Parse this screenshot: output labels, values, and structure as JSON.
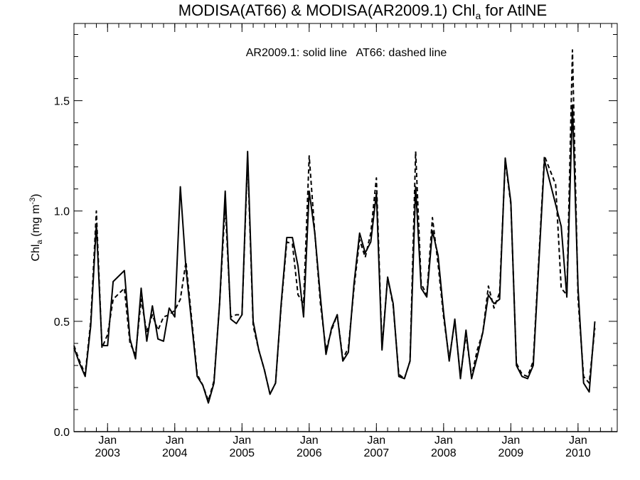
{
  "chart_data": {
    "type": "line",
    "title": {
      "prefix": "MODISA(AT66) & MODISA(AR2009.1)  Chl",
      "subscript": "a",
      "suffix": " for AtlNE"
    },
    "annotation": "AR2009.1: solid line   AT66: dashed line",
    "ylabel": {
      "base": "Chl",
      "subscript": "a",
      "units": " (mg m",
      "superscript": "-3",
      "close": ")"
    },
    "ylim": [
      0.0,
      1.85
    ],
    "yticks": [
      {
        "value": 0.0,
        "label": "0.0"
      },
      {
        "value": 0.5,
        "label": "0.5"
      },
      {
        "value": 1.0,
        "label": "1.0"
      },
      {
        "value": 1.5,
        "label": "1.5"
      }
    ],
    "xlim": [
      "2002-07",
      "2010-08"
    ],
    "xticks": [
      {
        "date": "2003-01",
        "month": "Jan",
        "year": "2003"
      },
      {
        "date": "2004-01",
        "month": "Jan",
        "year": "2004"
      },
      {
        "date": "2005-01",
        "month": "Jan",
        "year": "2005"
      },
      {
        "date": "2006-01",
        "month": "Jan",
        "year": "2006"
      },
      {
        "date": "2007-01",
        "month": "Jan",
        "year": "2007"
      },
      {
        "date": "2008-01",
        "month": "Jan",
        "year": "2008"
      },
      {
        "date": "2009-01",
        "month": "Jan",
        "year": "2009"
      },
      {
        "date": "2010-01",
        "month": "Jan",
        "year": "2010"
      }
    ],
    "grid": false,
    "series": [
      {
        "name": "AR2009.1",
        "style": "solid",
        "color": "#000000",
        "points": [
          [
            "2002-07",
            0.38
          ],
          [
            "2002-08",
            0.31
          ],
          [
            "2002-09",
            0.25
          ],
          [
            "2002-10",
            0.48
          ],
          [
            "2002-11",
            0.94
          ],
          [
            "2002-12",
            0.39
          ],
          [
            "2003-01",
            0.39
          ],
          [
            "2003-02",
            0.68
          ],
          [
            "2003-04",
            0.73
          ],
          [
            "2003-05",
            0.42
          ],
          [
            "2003-06",
            0.33
          ],
          [
            "2003-07",
            0.65
          ],
          [
            "2003-08",
            0.41
          ],
          [
            "2003-09",
            0.57
          ],
          [
            "2003-10",
            0.42
          ],
          [
            "2003-11",
            0.41
          ],
          [
            "2003-12",
            0.56
          ],
          [
            "2004-01",
            0.52
          ],
          [
            "2004-02",
            1.11
          ],
          [
            "2004-03",
            0.74
          ],
          [
            "2004-05",
            0.25
          ],
          [
            "2004-06",
            0.21
          ],
          [
            "2004-07",
            0.13
          ],
          [
            "2004-08",
            0.22
          ],
          [
            "2004-09",
            0.58
          ],
          [
            "2004-10",
            1.09
          ],
          [
            "2004-11",
            0.51
          ],
          [
            "2004-12",
            0.49
          ],
          [
            "2005-01",
            0.53
          ],
          [
            "2005-02",
            1.27
          ],
          [
            "2005-03",
            0.5
          ],
          [
            "2005-04",
            0.37
          ],
          [
            "2005-05",
            0.28
          ],
          [
            "2005-06",
            0.17
          ],
          [
            "2005-07",
            0.22
          ],
          [
            "2005-08",
            0.58
          ],
          [
            "2005-09",
            0.88
          ],
          [
            "2005-10",
            0.88
          ],
          [
            "2005-11",
            0.75
          ],
          [
            "2005-12",
            0.52
          ],
          [
            "2006-01",
            1.09
          ],
          [
            "2006-02",
            0.9
          ],
          [
            "2006-03",
            0.61
          ],
          [
            "2006-04",
            0.35
          ],
          [
            "2006-05",
            0.47
          ],
          [
            "2006-06",
            0.53
          ],
          [
            "2006-07",
            0.32
          ],
          [
            "2006-08",
            0.36
          ],
          [
            "2006-09",
            0.67
          ],
          [
            "2006-10",
            0.9
          ],
          [
            "2006-11",
            0.81
          ],
          [
            "2006-12",
            0.86
          ],
          [
            "2007-01",
            1.08
          ],
          [
            "2007-02",
            0.37
          ],
          [
            "2007-03",
            0.7
          ],
          [
            "2007-04",
            0.58
          ],
          [
            "2007-05",
            0.25
          ],
          [
            "2007-06",
            0.24
          ],
          [
            "2007-07",
            0.32
          ],
          [
            "2007-08",
            1.11
          ],
          [
            "2007-09",
            0.65
          ],
          [
            "2007-10",
            0.61
          ],
          [
            "2007-11",
            0.91
          ],
          [
            "2007-12",
            0.8
          ],
          [
            "2008-01",
            0.54
          ],
          [
            "2008-02",
            0.32
          ],
          [
            "2008-03",
            0.51
          ],
          [
            "2008-04",
            0.24
          ],
          [
            "2008-05",
            0.46
          ],
          [
            "2008-06",
            0.24
          ],
          [
            "2008-07",
            0.34
          ],
          [
            "2008-08",
            0.45
          ],
          [
            "2008-09",
            0.62
          ],
          [
            "2008-10",
            0.58
          ],
          [
            "2008-11",
            0.6
          ],
          [
            "2008-12",
            1.24
          ],
          [
            "2009-01",
            1.04
          ],
          [
            "2009-02",
            0.3
          ],
          [
            "2009-03",
            0.25
          ],
          [
            "2009-04",
            0.24
          ],
          [
            "2009-05",
            0.3
          ],
          [
            "2009-07",
            1.23
          ],
          [
            "2009-10",
            0.93
          ],
          [
            "2009-11",
            0.61
          ],
          [
            "2009-12",
            1.48
          ],
          [
            "2010-01",
            0.65
          ],
          [
            "2010-02",
            0.22
          ],
          [
            "2010-03",
            0.18
          ],
          [
            "2010-04",
            0.5
          ]
        ]
      },
      {
        "name": "AT66",
        "style": "dashed",
        "color": "#000000",
        "points": [
          [
            "2002-07",
            0.39
          ],
          [
            "2002-08",
            0.32
          ],
          [
            "2002-09",
            0.26
          ],
          [
            "2002-10",
            0.5
          ],
          [
            "2002-11",
            1.0
          ],
          [
            "2002-12",
            0.38
          ],
          [
            "2003-01",
            0.44
          ],
          [
            "2003-02",
            0.6
          ],
          [
            "2003-04",
            0.65
          ],
          [
            "2003-05",
            0.4
          ],
          [
            "2003-06",
            0.35
          ],
          [
            "2003-07",
            0.6
          ],
          [
            "2003-08",
            0.45
          ],
          [
            "2003-09",
            0.53
          ],
          [
            "2003-10",
            0.46
          ],
          [
            "2003-11",
            0.52
          ],
          [
            "2003-12",
            0.53
          ],
          [
            "2004-01",
            0.55
          ],
          [
            "2004-02",
            0.6
          ],
          [
            "2004-03",
            0.77
          ],
          [
            "2004-05",
            0.26
          ],
          [
            "2004-06",
            0.21
          ],
          [
            "2004-07",
            0.14
          ],
          [
            "2004-08",
            0.23
          ],
          [
            "2004-09",
            0.58
          ],
          [
            "2004-10",
            1.03
          ],
          [
            "2004-11",
            0.52
          ],
          [
            "2004-12",
            0.53
          ],
          [
            "2005-01",
            0.53
          ],
          [
            "2005-02",
            1.24
          ],
          [
            "2005-03",
            0.48
          ],
          [
            "2005-04",
            0.37
          ],
          [
            "2005-05",
            0.28
          ],
          [
            "2005-06",
            0.17
          ],
          [
            "2005-07",
            0.22
          ],
          [
            "2005-08",
            0.57
          ],
          [
            "2005-09",
            0.86
          ],
          [
            "2005-10",
            0.85
          ],
          [
            "2005-11",
            0.62
          ],
          [
            "2005-12",
            0.58
          ],
          [
            "2006-01",
            1.25
          ],
          [
            "2006-02",
            0.9
          ],
          [
            "2006-03",
            0.58
          ],
          [
            "2006-04",
            0.37
          ],
          [
            "2006-05",
            0.46
          ],
          [
            "2006-06",
            0.53
          ],
          [
            "2006-07",
            0.33
          ],
          [
            "2006-08",
            0.38
          ],
          [
            "2006-09",
            0.65
          ],
          [
            "2006-10",
            0.87
          ],
          [
            "2006-11",
            0.79
          ],
          [
            "2006-12",
            0.9
          ],
          [
            "2007-01",
            1.15
          ],
          [
            "2007-02",
            0.38
          ],
          [
            "2007-03",
            0.7
          ],
          [
            "2007-04",
            0.57
          ],
          [
            "2007-05",
            0.26
          ],
          [
            "2007-06",
            0.24
          ],
          [
            "2007-07",
            0.32
          ],
          [
            "2007-08",
            1.27
          ],
          [
            "2007-09",
            0.67
          ],
          [
            "2007-10",
            0.62
          ],
          [
            "2007-11",
            0.97
          ],
          [
            "2007-12",
            0.76
          ],
          [
            "2008-01",
            0.52
          ],
          [
            "2008-02",
            0.33
          ],
          [
            "2008-03",
            0.5
          ],
          [
            "2008-04",
            0.25
          ],
          [
            "2008-05",
            0.44
          ],
          [
            "2008-06",
            0.25
          ],
          [
            "2008-07",
            0.37
          ],
          [
            "2008-08",
            0.45
          ],
          [
            "2008-09",
            0.66
          ],
          [
            "2008-10",
            0.56
          ],
          [
            "2008-11",
            0.63
          ],
          [
            "2008-12",
            1.23
          ],
          [
            "2009-01",
            1.03
          ],
          [
            "2009-02",
            0.31
          ],
          [
            "2009-03",
            0.26
          ],
          [
            "2009-04",
            0.25
          ],
          [
            "2009-05",
            0.32
          ],
          [
            "2009-07",
            1.25
          ],
          [
            "2009-09",
            1.12
          ],
          [
            "2009-10",
            0.65
          ],
          [
            "2009-11",
            0.62
          ],
          [
            "2009-12",
            1.73
          ],
          [
            "2010-01",
            0.6
          ],
          [
            "2010-02",
            0.25
          ],
          [
            "2010-03",
            0.22
          ],
          [
            "2010-04",
            0.47
          ]
        ]
      }
    ]
  }
}
